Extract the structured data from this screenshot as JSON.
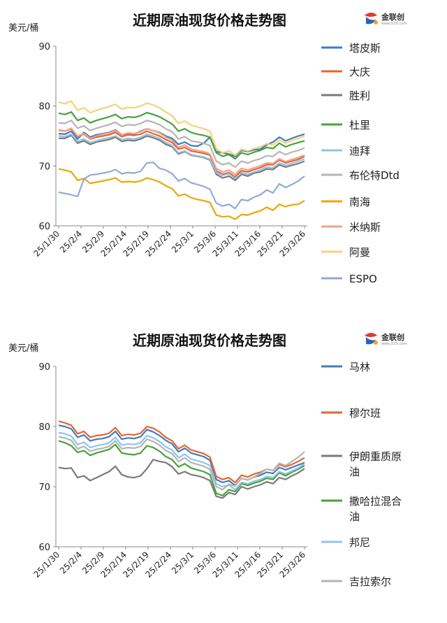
{
  "logo": {
    "text": "金联创",
    "sub": "www.315i.com",
    "colors": [
      "#e03a2f",
      "#2a63b8",
      "#f2a516"
    ]
  },
  "chart_data": [
    {
      "type": "line",
      "title": "近期原油现货价格走势图",
      "ylabel": "美元/桶",
      "ylim": [
        60,
        90
      ],
      "yticks": [
        60,
        70,
        80,
        90
      ],
      "grid": false,
      "legend": "right",
      "x": [
        "25/1/30",
        "25/1/31",
        "25/2/3",
        "25/2/4",
        "25/2/5",
        "25/2/6",
        "25/2/7",
        "25/2/10",
        "25/2/11",
        "25/2/12",
        "25/2/13",
        "25/2/14",
        "25/2/17",
        "25/2/18",
        "25/2/19",
        "25/2/20",
        "25/2/21",
        "25/2/24",
        "25/2/25",
        "25/2/26",
        "25/2/27",
        "25/2/28",
        "25/3/3",
        "25/3/4",
        "25/3/5",
        "25/3/6",
        "25/3/7",
        "25/3/10",
        "25/3/11",
        "25/3/12",
        "25/3/13",
        "25/3/14",
        "25/3/17",
        "25/3/18",
        "25/3/19",
        "25/3/20",
        "25/3/21",
        "25/3/24",
        "25/3/25",
        "25/3/26"
      ],
      "xtick_labels": [
        "25/1/30",
        "25/2/4",
        "25/2/9",
        "25/2/14",
        "25/2/19",
        "25/2/24",
        "25/3/1",
        "25/3/6",
        "25/3/11",
        "25/3/16",
        "25/3/21",
        "25/3/26"
      ],
      "series": [
        {
          "name": "塔皮斯",
          "color": "#3e7cc0",
          "values": [
            75.4,
            75.3,
            75.8,
            74.5,
            75.6,
            74.8,
            75.2,
            75.4,
            75.6,
            76.0,
            75.2,
            75.4,
            75.3,
            75.8,
            76.2,
            75.9,
            75.6,
            75.0,
            74.6,
            73.6,
            74.0,
            73.4,
            73.3,
            73.8,
            74.8,
            72.4,
            72.2,
            72.0,
            71.6,
            72.6,
            72.4,
            72.7,
            72.8,
            73.5,
            74.0,
            74.8,
            74.2,
            74.6,
            75.0,
            75.3
          ]
        },
        {
          "name": "大庆",
          "color": "#e8642a",
          "values": [
            76.0,
            75.8,
            76.2,
            74.9,
            75.3,
            74.5,
            74.8,
            75.0,
            75.2,
            75.6,
            74.9,
            75.2,
            75.1,
            75.3,
            75.8,
            75.4,
            75.0,
            74.4,
            73.9,
            72.8,
            73.1,
            72.5,
            72.3,
            72.1,
            71.8,
            69.2,
            68.6,
            68.9,
            68.2,
            69.2,
            69.0,
            69.4,
            69.7,
            70.2,
            70.2,
            71.0,
            70.5,
            70.8,
            71.1,
            71.6
          ]
        },
        {
          "name": "胜利",
          "color": "#7a7a7a",
          "values": [
            74.6,
            74.6,
            75.1,
            73.8,
            74.2,
            73.6,
            74.0,
            74.2,
            74.4,
            74.8,
            74.1,
            74.3,
            74.2,
            74.5,
            75.0,
            74.7,
            74.3,
            73.6,
            73.2,
            72.0,
            72.4,
            71.8,
            71.6,
            71.4,
            71.0,
            68.6,
            68.0,
            68.3,
            67.6,
            68.6,
            68.3,
            68.8,
            69.0,
            69.5,
            69.4,
            70.2,
            69.8,
            70.1,
            70.4,
            70.8
          ]
        },
        {
          "name": "杜里",
          "color": "#47a339",
          "values": [
            78.8,
            78.6,
            79.0,
            77.6,
            78.0,
            77.2,
            77.6,
            77.9,
            78.2,
            78.6,
            77.9,
            78.2,
            78.1,
            78.4,
            78.9,
            78.6,
            78.2,
            77.6,
            77.0,
            75.8,
            76.2,
            75.6,
            75.3,
            75.1,
            74.8,
            72.2,
            71.6,
            71.9,
            71.2,
            72.2,
            71.9,
            72.3,
            72.6,
            73.1,
            72.9,
            73.8,
            73.2,
            73.6,
            73.9,
            74.2
          ]
        },
        {
          "name": "迪拜",
          "color": "#8ec5ec",
          "values": [
            75.0,
            74.9,
            75.3,
            74.1,
            74.5,
            73.9,
            74.2,
            74.5,
            74.7,
            75.0,
            74.4,
            74.6,
            74.5,
            74.8,
            75.3,
            75.0,
            74.6,
            73.9,
            73.4,
            72.2,
            72.5,
            71.9,
            71.7,
            71.5,
            71.1,
            68.9,
            68.4,
            68.7,
            67.9,
            68.9,
            68.6,
            69.0,
            69.3,
            69.8,
            69.7,
            70.5,
            70.1,
            70.4,
            70.8,
            71.2
          ]
        },
        {
          "name": "布伦特Dtd",
          "color": "#b5b5b5",
          "values": [
            77.2,
            77.1,
            77.6,
            76.3,
            76.7,
            75.9,
            76.3,
            76.6,
            76.9,
            77.3,
            76.6,
            76.9,
            76.8,
            77.1,
            77.6,
            77.3,
            76.9,
            76.2,
            75.7,
            74.5,
            74.9,
            74.2,
            74.0,
            73.8,
            73.4,
            70.8,
            70.2,
            70.5,
            69.8,
            70.8,
            70.5,
            70.9,
            71.2,
            71.7,
            71.6,
            72.4,
            71.9,
            72.3,
            72.6,
            73.0
          ]
        },
        {
          "name": "南海",
          "color": "#e8a900",
          "values": [
            69.5,
            69.3,
            69.0,
            67.6,
            67.9,
            67.1,
            67.3,
            67.5,
            67.7,
            68.0,
            67.3,
            67.4,
            67.3,
            67.5,
            68.0,
            67.7,
            67.3,
            66.7,
            66.2,
            65.0,
            65.3,
            64.7,
            64.4,
            64.2,
            63.9,
            61.8,
            61.5,
            61.6,
            61.1,
            61.9,
            61.8,
            62.2,
            62.5,
            63.1,
            62.6,
            63.6,
            63.2,
            63.5,
            63.6,
            64.2
          ]
        },
        {
          "name": "米纳斯",
          "color": "#f2a18d",
          "values": [
            75.9,
            75.8,
            76.3,
            75.0,
            75.4,
            74.6,
            75.0,
            75.3,
            75.5,
            75.9,
            75.2,
            75.5,
            75.4,
            75.7,
            76.2,
            75.9,
            75.5,
            74.8,
            74.3,
            73.1,
            73.5,
            72.8,
            72.6,
            72.4,
            72.0,
            69.6,
            69.0,
            69.3,
            68.6,
            69.6,
            69.3,
            69.7,
            70.0,
            70.5,
            70.4,
            71.2,
            70.7,
            71.1,
            71.4,
            71.8
          ]
        },
        {
          "name": "阿曼",
          "color": "#f8d178",
          "values": [
            80.6,
            80.4,
            80.8,
            79.3,
            79.7,
            78.9,
            79.3,
            79.6,
            79.9,
            80.3,
            79.5,
            79.8,
            79.7,
            80.0,
            80.5,
            80.2,
            79.7,
            79.0,
            78.4,
            77.1,
            77.5,
            76.8,
            76.5,
            76.2,
            75.8,
            72.9,
            72.2,
            72.5,
            71.8,
            72.8,
            72.5,
            72.9,
            73.2,
            73.7,
            73.5,
            74.3,
            73.8,
            74.2,
            74.6,
            75.0
          ]
        },
        {
          "name": "ESPO",
          "color": "#8faadf",
          "values": [
            65.6,
            65.4,
            65.2,
            64.9,
            67.8,
            68.5,
            68.6,
            68.8,
            69.0,
            69.4,
            68.7,
            68.9,
            68.8,
            69.1,
            70.5,
            70.6,
            69.6,
            69.3,
            68.7,
            67.5,
            67.9,
            67.2,
            66.9,
            66.6,
            66.1,
            63.8,
            63.3,
            63.6,
            62.9,
            64.4,
            64.2,
            64.8,
            65.2,
            66.0,
            65.5,
            67.0,
            66.4,
            66.9,
            67.5,
            68.3
          ]
        }
      ]
    },
    {
      "type": "line",
      "title": "近期原油现货价格走势图",
      "ylabel": "美元/桶",
      "ylim": [
        60,
        90
      ],
      "yticks": [
        60,
        70,
        80,
        90
      ],
      "grid": false,
      "legend": "right",
      "x": [
        "25/1/30",
        "25/1/31",
        "25/2/3",
        "25/2/4",
        "25/2/5",
        "25/2/6",
        "25/2/7",
        "25/2/10",
        "25/2/11",
        "25/2/12",
        "25/2/13",
        "25/2/14",
        "25/2/17",
        "25/2/18",
        "25/2/19",
        "25/2/20",
        "25/2/21",
        "25/2/24",
        "25/2/25",
        "25/2/26",
        "25/2/27",
        "25/2/28",
        "25/3/3",
        "25/3/4",
        "25/3/5",
        "25/3/6",
        "25/3/7",
        "25/3/10",
        "25/3/11",
        "25/3/12",
        "25/3/13",
        "25/3/14",
        "25/3/17",
        "25/3/18",
        "25/3/19",
        "25/3/20",
        "25/3/21",
        "25/3/24",
        "25/3/25",
        "25/3/26"
      ],
      "xtick_labels": [
        "25/1/30",
        "25/2/4",
        "25/2/9",
        "25/2/14",
        "25/2/19",
        "25/2/24",
        "25/3/1",
        "25/3/6",
        "25/3/11",
        "25/3/16",
        "25/3/21",
        "25/3/26"
      ],
      "series": [
        {
          "name": "马林",
          "color": "#3e7cc0",
          "values": [
            80.2,
            80.0,
            79.6,
            78.2,
            78.6,
            77.6,
            77.9,
            78.0,
            78.3,
            79.2,
            77.9,
            78.1,
            78.0,
            78.3,
            79.5,
            79.1,
            78.5,
            77.7,
            77.1,
            75.8,
            76.4,
            75.6,
            75.3,
            75.0,
            74.4,
            71.2,
            70.7,
            71.0,
            70.2,
            71.4,
            71.1,
            71.6,
            71.9,
            72.4,
            72.2,
            73.2,
            72.8,
            73.2,
            73.6,
            74.0
          ]
        },
        {
          "name": "穆尔班",
          "color": "#e8642a",
          "values": [
            80.9,
            80.6,
            80.2,
            78.8,
            79.2,
            78.2,
            78.5,
            78.6,
            78.9,
            79.8,
            78.5,
            78.7,
            78.6,
            78.9,
            80.0,
            79.7,
            79.1,
            78.2,
            77.6,
            76.3,
            76.9,
            76.1,
            75.8,
            75.5,
            74.9,
            71.7,
            71.2,
            71.5,
            70.7,
            71.9,
            71.6,
            72.1,
            72.4,
            72.9,
            72.7,
            73.7,
            73.3,
            73.7,
            74.2,
            74.8
          ]
        },
        {
          "name": "伊朗重质原油",
          "color": "#7a7a7a",
          "values": [
            73.2,
            73.0,
            73.1,
            71.5,
            71.8,
            71.0,
            71.5,
            72.0,
            72.5,
            73.4,
            72.0,
            71.6,
            71.5,
            71.8,
            73.0,
            74.5,
            74.2,
            74.0,
            73.3,
            72.1,
            72.5,
            72.0,
            71.8,
            71.5,
            71.0,
            68.4,
            68.1,
            69.0,
            68.7,
            70.0,
            69.6,
            70.0,
            70.3,
            70.8,
            70.5,
            71.5,
            71.2,
            71.8,
            72.3,
            73.0
          ]
        },
        {
          "name": "撒哈拉混合油",
          "color": "#47a339",
          "values": [
            77.6,
            77.3,
            76.8,
            75.7,
            76.0,
            75.2,
            75.6,
            75.9,
            76.2,
            77.0,
            75.6,
            75.4,
            75.3,
            75.6,
            76.8,
            76.5,
            75.9,
            75.0,
            74.5,
            73.3,
            73.8,
            73.1,
            72.8,
            72.5,
            72.0,
            68.9,
            68.5,
            69.5,
            69.2,
            70.5,
            70.2,
            70.6,
            70.9,
            71.4,
            71.2,
            72.3,
            71.8,
            72.4,
            72.9,
            73.5
          ]
        },
        {
          "name": "邦尼",
          "color": "#8ec5ec",
          "values": [
            79.0,
            78.8,
            78.4,
            77.0,
            77.4,
            76.5,
            76.8,
            77.0,
            77.3,
            78.2,
            76.9,
            77.1,
            77.0,
            77.3,
            78.5,
            78.1,
            77.5,
            76.6,
            76.1,
            74.8,
            75.4,
            74.6,
            74.3,
            74.0,
            73.5,
            70.5,
            70.0,
            70.3,
            69.5,
            70.7,
            70.5,
            70.9,
            71.2,
            71.7,
            71.5,
            72.5,
            72.1,
            72.6,
            73.1,
            73.8
          ]
        },
        {
          "name": "吉拉索尔",
          "color": "#b5b5b5",
          "values": [
            78.3,
            78.1,
            77.7,
            76.3,
            76.7,
            75.9,
            76.2,
            76.4,
            76.7,
            77.6,
            76.3,
            76.5,
            76.4,
            76.7,
            77.9,
            77.5,
            76.9,
            76.0,
            75.5,
            74.2,
            74.8,
            74.0,
            73.7,
            73.4,
            72.9,
            70.0,
            69.5,
            70.4,
            70.1,
            71.4,
            71.1,
            71.6,
            72.2,
            72.9,
            72.7,
            73.9,
            73.5,
            74.2,
            74.9,
            75.8
          ]
        }
      ]
    }
  ]
}
